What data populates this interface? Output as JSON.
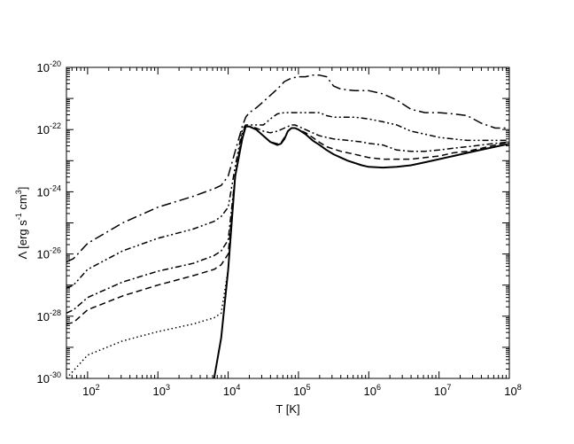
{
  "chart_data": {
    "type": "line",
    "title": "",
    "xlabel": "T [K]",
    "ylabel_parts": {
      "lambda": "Λ [erg s",
      "exp1": "-1",
      "cm": " cm",
      "exp2": "3",
      "close": "]"
    },
    "x_scale": "log",
    "y_scale": "log",
    "xlim": [
      50,
      100000000
    ],
    "ylim": [
      1e-30,
      1e-20
    ],
    "x_ticks": [
      {
        "value": 100,
        "base": "10",
        "exp": "2"
      },
      {
        "value": 1000,
        "base": "10",
        "exp": "3"
      },
      {
        "value": 10000,
        "base": "10",
        "exp": "4"
      },
      {
        "value": 100000,
        "base": "10",
        "exp": "5"
      },
      {
        "value": 1000000,
        "base": "10",
        "exp": "6"
      },
      {
        "value": 10000000,
        "base": "10",
        "exp": "7"
      },
      {
        "value": 100000000,
        "base": "10",
        "exp": "8"
      }
    ],
    "y_ticks": [
      {
        "value": 1e-30,
        "base": "10",
        "exp": "-30"
      },
      {
        "value": 1e-28,
        "base": "10",
        "exp": "-28"
      },
      {
        "value": 1e-26,
        "base": "10",
        "exp": "-26"
      },
      {
        "value": 1e-24,
        "base": "10",
        "exp": "-24"
      },
      {
        "value": 1e-22,
        "base": "10",
        "exp": "-22"
      },
      {
        "value": 1e-20,
        "base": "10",
        "exp": "-20"
      }
    ],
    "grid": false,
    "series": [
      {
        "style": "solid",
        "points": [
          [
            6310,
            1e-30
          ],
          [
            7943,
            2e-29
          ],
          [
            10000,
            3.16e-27
          ],
          [
            12589,
            3.16e-24
          ],
          [
            15849,
            5e-23
          ],
          [
            17783,
            1.26e-22
          ],
          [
            19953,
            1.26e-22
          ],
          [
            25119,
            1e-22
          ],
          [
            31623,
            6.3e-23
          ],
          [
            39811,
            4e-23
          ],
          [
            50119,
            3.2e-23
          ],
          [
            56234,
            3.5e-23
          ],
          [
            63096,
            5e-23
          ],
          [
            70795,
            8.9e-23
          ],
          [
            79433,
            1.12e-22
          ],
          [
            89125,
            1.12e-22
          ],
          [
            100000,
            1e-22
          ],
          [
            125893,
            7.1e-23
          ],
          [
            158489,
            4.5e-23
          ],
          [
            199526,
            3.2e-23
          ],
          [
            251189,
            2.2e-23
          ],
          [
            316228,
            1.6e-23
          ],
          [
            501187,
            1e-23
          ],
          [
            794328,
            7.1e-24
          ],
          [
            1000000,
            6.3e-24
          ],
          [
            1584893,
            6e-24
          ],
          [
            2511886,
            6.3e-24
          ],
          [
            3981072,
            7.1e-24
          ],
          [
            6309573,
            8.9e-24
          ],
          [
            10000000,
            1.12e-23
          ],
          [
            15848932,
            1.41e-23
          ],
          [
            25118864,
            1.78e-23
          ],
          [
            39810717,
            2.24e-23
          ],
          [
            63095734,
            2.8e-23
          ],
          [
            100000000,
            3.5e-23
          ]
        ]
      },
      {
        "style": "dotted",
        "points": [
          [
            50,
            1e-30
          ],
          [
            100,
            5.6e-30
          ],
          [
            316,
            1.6e-29
          ],
          [
            1000,
            3.2e-29
          ],
          [
            3162,
            5.6e-29
          ],
          [
            6310,
            8.9e-29
          ],
          [
            7943,
            1.26e-28
          ],
          [
            10000,
            3.16e-27
          ],
          [
            12589,
            3.16e-24
          ]
        ]
      },
      {
        "style": "dashed",
        "points": [
          [
            50,
            5.6e-29
          ],
          [
            63,
            6.3e-29
          ],
          [
            100,
            1.6e-28
          ],
          [
            316,
            4.5e-28
          ],
          [
            1000,
            1e-27
          ],
          [
            3162,
            2e-27
          ],
          [
            6310,
            3.2e-27
          ],
          [
            7943,
            4.5e-27
          ],
          [
            10000,
            1e-26
          ],
          [
            12589,
            3.16e-24
          ],
          [
            15849,
            6.3e-23
          ],
          [
            17783,
            1.26e-22
          ],
          [
            19953,
            1.26e-22
          ],
          [
            25119,
            1e-22
          ],
          [
            31623,
            6.3e-23
          ],
          [
            39811,
            4e-23
          ],
          [
            50119,
            3.5e-23
          ],
          [
            56234,
            3.7e-23
          ],
          [
            63096,
            5.6e-23
          ],
          [
            70795,
            8.9e-23
          ],
          [
            79433,
            1.12e-22
          ],
          [
            89125,
            1.12e-22
          ],
          [
            100000,
            1e-22
          ],
          [
            125893,
            7.9e-23
          ],
          [
            158489,
            5.6e-23
          ],
          [
            199526,
            3.9e-23
          ],
          [
            251189,
            2.8e-23
          ],
          [
            398107,
            2e-23
          ],
          [
            630957,
            1.6e-23
          ],
          [
            1000000,
            1.26e-23
          ],
          [
            1584893,
            1.12e-23
          ],
          [
            2511886,
            1.12e-23
          ],
          [
            3981072,
            1.12e-23
          ],
          [
            6309573,
            1.26e-23
          ],
          [
            10000000,
            1.41e-23
          ],
          [
            15848932,
            1.78e-23
          ],
          [
            25118864,
            2e-23
          ],
          [
            39810717,
            2.5e-23
          ],
          [
            63095734,
            3.2e-23
          ],
          [
            100000000,
            4e-23
          ]
        ]
      },
      {
        "style": "dashdot",
        "points": [
          [
            50,
            1.26e-28
          ],
          [
            63,
            1.6e-28
          ],
          [
            100,
            4e-28
          ],
          [
            316,
            1.26e-27
          ],
          [
            1000,
            2.8e-27
          ],
          [
            3162,
            5e-27
          ],
          [
            6310,
            8.9e-27
          ],
          [
            7943,
            1.26e-26
          ],
          [
            10000,
            2.8e-26
          ],
          [
            12589,
            3.16e-24
          ],
          [
            15849,
            7.9e-23
          ],
          [
            17783,
            1.26e-22
          ],
          [
            19953,
            1.26e-22
          ],
          [
            25119,
            1.12e-22
          ],
          [
            31623,
            8.9e-23
          ],
          [
            39811,
            7.9e-23
          ],
          [
            50119,
            8.9e-23
          ],
          [
            63096,
            1.12e-22
          ],
          [
            79433,
            1.41e-22
          ],
          [
            89125,
            1.41e-22
          ],
          [
            100000,
            1.26e-22
          ],
          [
            125893,
            1e-22
          ],
          [
            158489,
            7.9e-23
          ],
          [
            199526,
            6.3e-23
          ],
          [
            251189,
            5.6e-23
          ],
          [
            316228,
            5e-23
          ],
          [
            501187,
            4.5e-23
          ],
          [
            794328,
            4e-23
          ],
          [
            1000000,
            3.6e-23
          ],
          [
            1584893,
            3.2e-23
          ],
          [
            2511886,
            2.2e-23
          ],
          [
            3981072,
            2e-23
          ],
          [
            6309573,
            2e-23
          ],
          [
            10000000,
            2.2e-23
          ],
          [
            15848932,
            2.5e-23
          ],
          [
            25118864,
            2.8e-23
          ],
          [
            39810717,
            3.2e-23
          ],
          [
            63095734,
            3.6e-23
          ],
          [
            100000000,
            4e-23
          ]
        ]
      },
      {
        "style": "dashdotdot",
        "points": [
          [
            50,
            7.9e-28
          ],
          [
            63,
            1e-27
          ],
          [
            100,
            3.2e-27
          ],
          [
            316,
            1.26e-26
          ],
          [
            1000,
            3.2e-26
          ],
          [
            3162,
            6.3e-26
          ],
          [
            6310,
            1.12e-25
          ],
          [
            7943,
            1.6e-25
          ],
          [
            10000,
            3.2e-25
          ],
          [
            12589,
            6.3e-24
          ],
          [
            15849,
            1e-22
          ],
          [
            17783,
            1.41e-22
          ],
          [
            19953,
            1.41e-22
          ],
          [
            25119,
            1.41e-22
          ],
          [
            31623,
            1.41e-22
          ],
          [
            39811,
            2.2e-22
          ],
          [
            50119,
            3.2e-22
          ],
          [
            63096,
            3.5e-22
          ],
          [
            79433,
            3.5e-22
          ],
          [
            100000,
            3.5e-22
          ],
          [
            125893,
            3.5e-22
          ],
          [
            158489,
            3.5e-22
          ],
          [
            199526,
            3.5e-22
          ],
          [
            251189,
            2.8e-22
          ],
          [
            316228,
            2.5e-22
          ],
          [
            398107,
            2.5e-22
          ],
          [
            630957,
            2.5e-22
          ],
          [
            1000000,
            2.2e-22
          ],
          [
            1584893,
            1.78e-22
          ],
          [
            2511886,
            1.41e-22
          ],
          [
            3981072,
            8.9e-23
          ],
          [
            6309573,
            7.1e-23
          ],
          [
            10000000,
            5.6e-23
          ],
          [
            15848932,
            5e-23
          ],
          [
            25118864,
            4.5e-23
          ],
          [
            39810717,
            4.5e-23
          ],
          [
            63095734,
            4.5e-23
          ],
          [
            100000000,
            4.5e-23
          ]
        ]
      },
      {
        "style": "longdashdot",
        "points": [
          [
            50,
            5.6e-27
          ],
          [
            63,
            7.1e-27
          ],
          [
            100,
            2.2e-26
          ],
          [
            316,
            1e-25
          ],
          [
            1000,
            3.2e-25
          ],
          [
            3162,
            7.1e-25
          ],
          [
            6310,
            1.26e-24
          ],
          [
            7943,
            1.6e-24
          ],
          [
            10000,
            3.2e-24
          ],
          [
            12589,
            2e-23
          ],
          [
            15849,
            1.26e-22
          ],
          [
            17783,
            2.5e-22
          ],
          [
            19953,
            3.5e-22
          ],
          [
            25119,
            5e-22
          ],
          [
            31623,
            7.9e-22
          ],
          [
            39811,
            1.26e-21
          ],
          [
            50119,
            2e-21
          ],
          [
            63096,
            3.5e-21
          ],
          [
            79433,
            4.5e-21
          ],
          [
            100000,
            5e-21
          ],
          [
            125893,
            5e-21
          ],
          [
            158489,
            5.6e-21
          ],
          [
            199526,
            5.6e-21
          ],
          [
            251189,
            5e-21
          ],
          [
            316228,
            2.5e-21
          ],
          [
            398107,
            2e-21
          ],
          [
            630957,
            1.78e-21
          ],
          [
            1000000,
            1.78e-21
          ],
          [
            1584893,
            1.41e-21
          ],
          [
            2511886,
            8.9e-22
          ],
          [
            3981072,
            4.5e-22
          ],
          [
            6309573,
            3.5e-22
          ],
          [
            10000000,
            3.5e-22
          ],
          [
            15848932,
            3.2e-22
          ],
          [
            25118864,
            2.8e-22
          ],
          [
            39810717,
            1.6e-22
          ],
          [
            63095734,
            1.12e-22
          ],
          [
            100000000,
            1.12e-22
          ]
        ]
      }
    ]
  }
}
